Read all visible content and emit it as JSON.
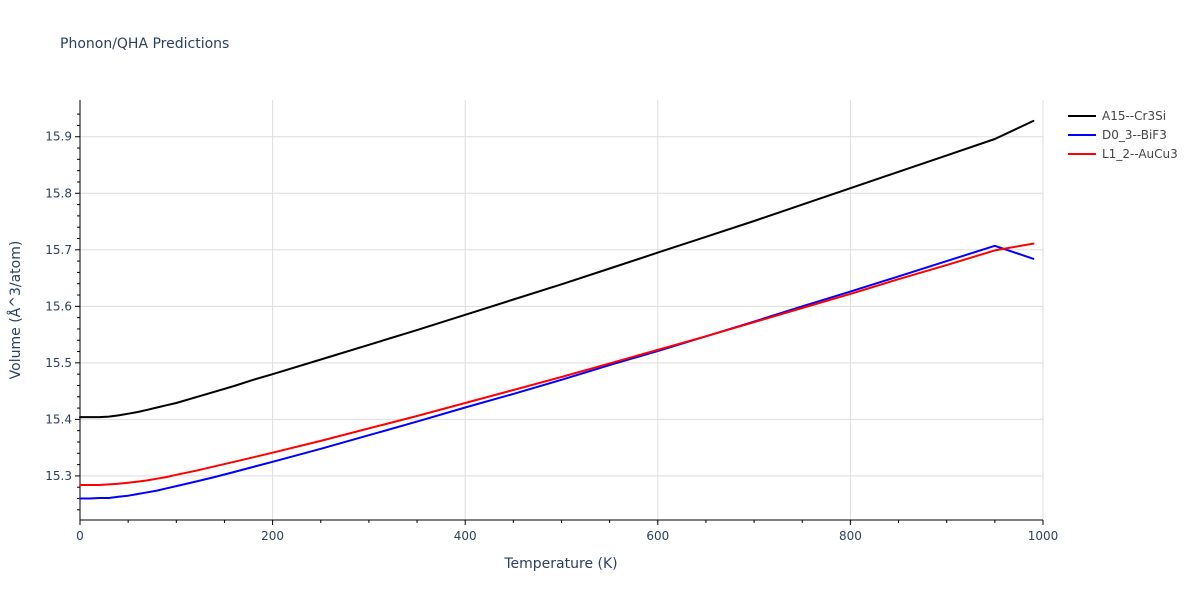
{
  "chart_data": {
    "type": "line",
    "title": "Phonon/QHA Predictions",
    "xlabel": "Temperature (K)",
    "ylabel": "Volume (Å^3/atom)",
    "xlim": [
      0,
      1000
    ],
    "ylim": [
      15.222,
      15.965
    ],
    "xticks": [
      0,
      200,
      400,
      600,
      800,
      1000
    ],
    "yticks": [
      15.3,
      15.4,
      15.5,
      15.6,
      15.7,
      15.8,
      15.9
    ],
    "grid": true,
    "legend_position": "top-right",
    "series": [
      {
        "name": "A15--Cr3Si",
        "color": "#000000",
        "x": [
          0,
          10,
          20,
          30,
          40,
          50,
          60,
          70,
          80,
          90,
          100,
          120,
          140,
          160,
          180,
          200,
          250,
          300,
          350,
          400,
          450,
          500,
          550,
          600,
          650,
          700,
          750,
          800,
          850,
          900,
          950,
          990
        ],
        "y": [
          15.404,
          15.404,
          15.404,
          15.405,
          15.407,
          15.41,
          15.413,
          15.417,
          15.421,
          15.425,
          15.429,
          15.439,
          15.449,
          15.459,
          15.47,
          15.48,
          15.506,
          15.532,
          15.558,
          15.585,
          15.612,
          15.639,
          15.667,
          15.695,
          15.723,
          15.751,
          15.78,
          15.809,
          15.838,
          15.867,
          15.896,
          15.928
        ]
      },
      {
        "name": "D0_3--BiF3",
        "color": "#0000ff",
        "x": [
          0,
          10,
          20,
          30,
          40,
          50,
          60,
          70,
          80,
          90,
          100,
          120,
          140,
          160,
          180,
          200,
          250,
          300,
          350,
          400,
          450,
          500,
          550,
          600,
          650,
          700,
          750,
          800,
          850,
          900,
          950,
          990
        ],
        "y": [
          15.26,
          15.26,
          15.261,
          15.261,
          15.263,
          15.265,
          15.268,
          15.271,
          15.274,
          15.278,
          15.282,
          15.29,
          15.298,
          15.307,
          15.316,
          15.325,
          15.348,
          15.372,
          15.396,
          15.421,
          15.445,
          15.47,
          15.496,
          15.521,
          15.547,
          15.573,
          15.6,
          15.626,
          15.653,
          15.68,
          15.707,
          15.684
        ]
      },
      {
        "name": "L1_2--AuCu3",
        "color": "#ff0000",
        "x": [
          0,
          10,
          20,
          30,
          40,
          50,
          60,
          70,
          80,
          90,
          100,
          120,
          140,
          160,
          180,
          200,
          250,
          300,
          350,
          400,
          450,
          500,
          550,
          600,
          650,
          700,
          750,
          800,
          850,
          900,
          950,
          990
        ],
        "y": [
          15.284,
          15.284,
          15.284,
          15.285,
          15.286,
          15.288,
          15.29,
          15.292,
          15.295,
          15.298,
          15.302,
          15.309,
          15.317,
          15.325,
          15.333,
          15.341,
          15.362,
          15.384,
          15.406,
          15.429,
          15.452,
          15.475,
          15.499,
          15.523,
          15.547,
          15.572,
          15.597,
          15.622,
          15.648,
          15.673,
          15.699,
          15.711
        ]
      }
    ]
  }
}
